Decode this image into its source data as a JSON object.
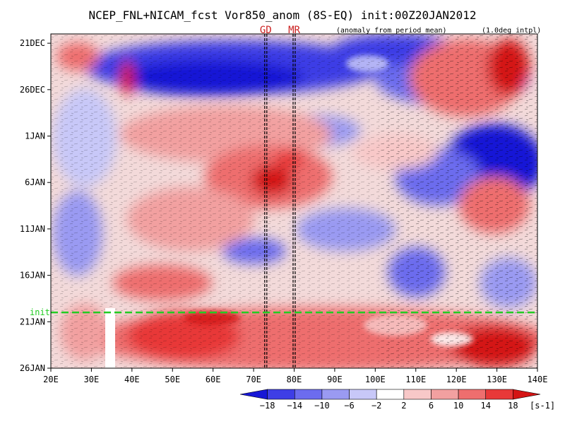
{
  "chart_data": {
    "type": "heatmap",
    "title": "NCEP_FNL+NICAM_fcst Vor850_anom (8S-EQ) init:00Z20JAN2012",
    "note_left": "(anomaly from period mean)",
    "note_right": "(1.0deg intpl)",
    "markers": [
      {
        "label": "GD",
        "x": 73
      },
      {
        "label": "MR",
        "x": 80
      }
    ],
    "init_label": "init",
    "init_time": "20JAN 00Z",
    "x_axis": {
      "ticks": [
        "20E",
        "30E",
        "40E",
        "50E",
        "60E",
        "70E",
        "80E",
        "90E",
        "100E",
        "110E",
        "120E",
        "130E",
        "140E"
      ],
      "range": [
        20,
        140
      ]
    },
    "y_axis": {
      "ticks": [
        "21DEC",
        "26DEC",
        "1JAN",
        "6JAN",
        "11JAN",
        "16JAN",
        "21JAN",
        "26JAN"
      ],
      "range_days": [
        0,
        36
      ]
    },
    "colorbar": {
      "levels": [
        "-18",
        "-14",
        "-10",
        "-6",
        "-2",
        "2",
        "6",
        "10",
        "14",
        "18"
      ],
      "colors": [
        "#1616d6",
        "#3e3ee6",
        "#6c6cee",
        "#9a9af2",
        "#c8c8f8",
        "#ffffff",
        "#f8c8c8",
        "#f2a0a0",
        "#ee6e6e",
        "#e83838",
        "#d41414"
      ],
      "unit": "[s-1]"
    },
    "anomaly_features": [
      {
        "sign": "negative",
        "lon": [
          45,
          110
        ],
        "date": "24DEC",
        "magnitude": -16
      },
      {
        "sign": "negative",
        "lon": [
          100,
          140
        ],
        "date": "26DEC",
        "magnitude": -14
      },
      {
        "sign": "negative",
        "lon": [
          115,
          140
        ],
        "date": "4JAN",
        "magnitude": -16
      },
      {
        "sign": "negative",
        "lon": [
          80,
          100
        ],
        "date": "12JAN",
        "magnitude": -10
      },
      {
        "sign": "negative",
        "lon": [
          108,
          120
        ],
        "date": "17JAN",
        "magnitude": -12
      },
      {
        "sign": "positive",
        "lon": [
          35,
          75
        ],
        "date": "1JAN",
        "magnitude": 12
      },
      {
        "sign": "positive",
        "lon": [
          60,
          80
        ],
        "date": "6JAN",
        "magnitude": 18
      },
      {
        "sign": "positive",
        "lon": [
          45,
          75
        ],
        "date": "11JAN",
        "magnitude": 10
      },
      {
        "sign": "positive",
        "lon": [
          115,
          140
        ],
        "date": "24DEC",
        "magnitude": 16
      },
      {
        "sign": "positive",
        "lon": [
          120,
          140
        ],
        "date": "8JAN",
        "magnitude": 12
      },
      {
        "sign": "positive",
        "lon": [
          35,
          140
        ],
        "date": "24JAN",
        "magnitude": 14
      }
    ]
  }
}
